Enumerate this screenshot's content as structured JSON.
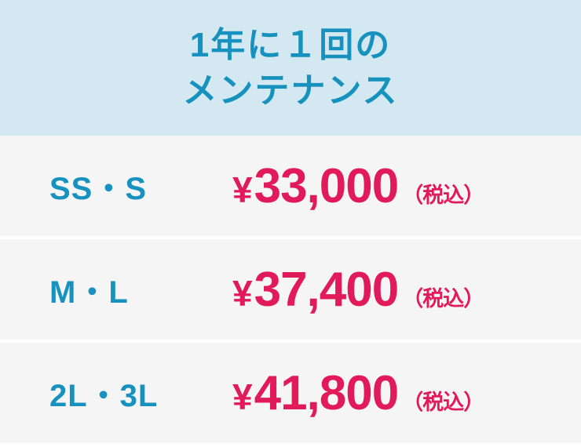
{
  "header": {
    "title_line1": "1年に１回の",
    "title_line2": "メンテナンス"
  },
  "rows": [
    {
      "label": "SS・S",
      "currency": "¥",
      "price": "33,000",
      "note": "（税込）"
    },
    {
      "label": "M・L",
      "currency": "¥",
      "price": "37,400",
      "note": "（税込）"
    },
    {
      "label": "2L・3L",
      "currency": "¥",
      "price": "41,800",
      "note": "（税込）"
    }
  ],
  "colors": {
    "header_bg": "#d3e8f0",
    "row_bg": "#f5f5f5",
    "divider": "#ffffff",
    "accent_blue": "#1791bd",
    "accent_red": "#e11a5b"
  }
}
